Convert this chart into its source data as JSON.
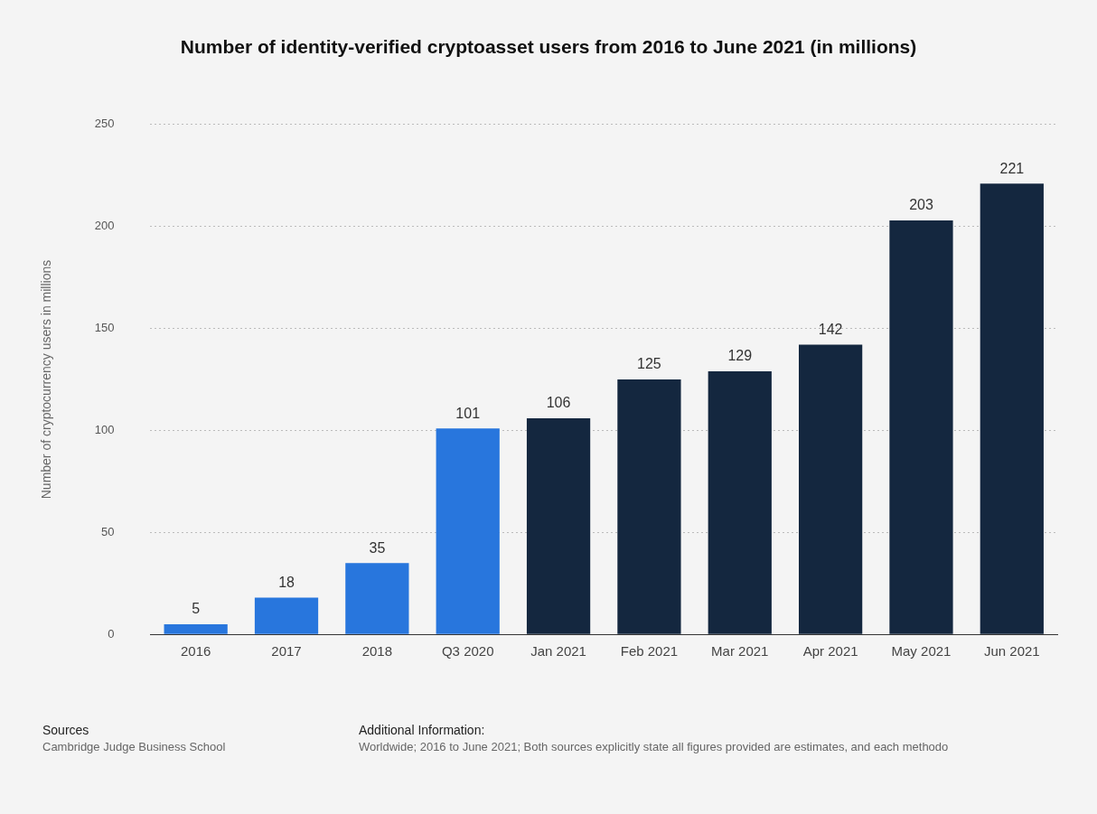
{
  "chart_data": {
    "type": "bar",
    "title": "Number of identity-verified cryptoasset users from 2016 to June 2021 (in millions)",
    "ylabel": "Number of cryptocurrency users in millions",
    "categories": [
      "2016",
      "2017",
      "2018",
      "Q3 2020",
      "Jan 2021",
      "Feb 2021",
      "Mar 2021",
      "Apr 2021",
      "May 2021",
      "Jun 2021"
    ],
    "values": [
      5,
      18,
      35,
      101,
      106,
      125,
      129,
      142,
      203,
      221
    ],
    "colors": [
      "#2876dd",
      "#2876dd",
      "#2876dd",
      "#2876dd",
      "#14273f",
      "#14273f",
      "#14273f",
      "#14273f",
      "#14273f",
      "#14273f"
    ],
    "ylim": [
      0,
      250
    ],
    "yticks": [
      0,
      50,
      100,
      150,
      200,
      250
    ],
    "grid": "y",
    "data_labels": true,
    "legend": false,
    "annotations": [
      "Sources",
      "Cambridge Judge Business School",
      "Additional Information:",
      "Worldwide; 2016 to June 2021; Both sources explicitly state all figures provided are estimates, and each methodo"
    ]
  }
}
